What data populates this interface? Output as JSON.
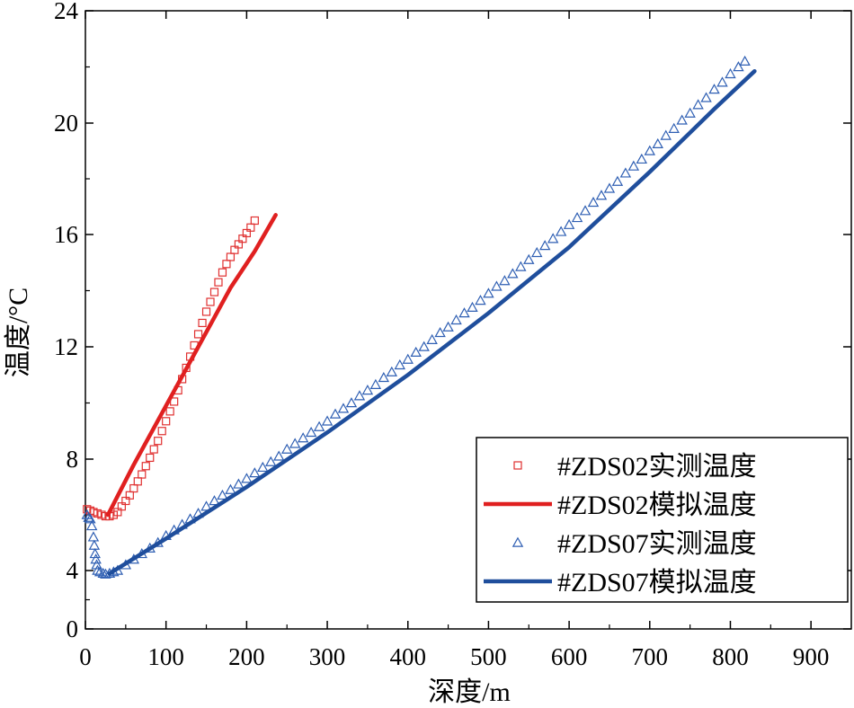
{
  "chart_data": {
    "type": "scatter",
    "title": "",
    "xlabel": "深度/m",
    "ylabel": "温度/°C",
    "xlim": [
      0,
      950
    ],
    "ylim": [
      0,
      24
    ],
    "x_ticks": [
      0,
      100,
      200,
      300,
      400,
      500,
      600,
      700,
      800,
      900
    ],
    "y_ticks": [
      0,
      4,
      8,
      12,
      16,
      20,
      24
    ],
    "grid": false,
    "legend_position": "bottom-right",
    "series": [
      {
        "name": "#ZDS02实测温度",
        "kind": "scatter",
        "marker": "square",
        "color": "#e03030",
        "points": [
          [
            2,
            6.2
          ],
          [
            6,
            6.15
          ],
          [
            10,
            6.1
          ],
          [
            15,
            6.05
          ],
          [
            20,
            6.0
          ],
          [
            25,
            5.95
          ],
          [
            30,
            5.95
          ],
          [
            35,
            6.0
          ],
          [
            40,
            6.1
          ],
          [
            45,
            6.3
          ],
          [
            50,
            6.5
          ],
          [
            55,
            6.7
          ],
          [
            60,
            6.95
          ],
          [
            65,
            7.2
          ],
          [
            70,
            7.45
          ],
          [
            75,
            7.75
          ],
          [
            80,
            8.05
          ],
          [
            85,
            8.35
          ],
          [
            90,
            8.65
          ],
          [
            95,
            9.0
          ],
          [
            100,
            9.35
          ],
          [
            105,
            9.7
          ],
          [
            110,
            10.05
          ],
          [
            115,
            10.45
          ],
          [
            120,
            10.85
          ],
          [
            125,
            11.25
          ],
          [
            130,
            11.65
          ],
          [
            135,
            12.05
          ],
          [
            140,
            12.45
          ],
          [
            145,
            12.85
          ],
          [
            150,
            13.25
          ],
          [
            155,
            13.6
          ],
          [
            160,
            13.95
          ],
          [
            165,
            14.3
          ],
          [
            170,
            14.65
          ],
          [
            175,
            14.95
          ],
          [
            180,
            15.2
          ],
          [
            185,
            15.45
          ],
          [
            190,
            15.65
          ],
          [
            195,
            15.85
          ],
          [
            200,
            16.05
          ],
          [
            205,
            16.25
          ],
          [
            210,
            16.5
          ]
        ]
      },
      {
        "name": "#ZDS02模拟温度",
        "kind": "line",
        "color": "#e02020",
        "points": [
          [
            28,
            6.0
          ],
          [
            60,
            7.8
          ],
          [
            100,
            9.9
          ],
          [
            140,
            12.0
          ],
          [
            180,
            14.1
          ],
          [
            210,
            15.4
          ],
          [
            236,
            16.7
          ]
        ]
      },
      {
        "name": "#ZDS07实测温度",
        "kind": "scatter",
        "marker": "triangle",
        "color": "#2f5fb3",
        "points": [
          [
            2,
            6.0
          ],
          [
            4,
            5.9
          ],
          [
            6,
            5.85
          ],
          [
            8,
            5.6
          ],
          [
            10,
            5.2
          ],
          [
            11,
            4.9
          ],
          [
            12,
            4.6
          ],
          [
            13,
            4.4
          ],
          [
            14,
            4.2
          ],
          [
            15,
            4.0
          ],
          [
            18,
            3.9
          ],
          [
            22,
            3.8
          ],
          [
            25,
            3.75
          ],
          [
            30,
            3.8
          ],
          [
            35,
            3.9
          ],
          [
            40,
            4.0
          ],
          [
            50,
            4.2
          ],
          [
            60,
            4.4
          ],
          [
            70,
            4.6
          ],
          [
            80,
            4.8
          ],
          [
            90,
            5.0
          ],
          [
            100,
            5.25
          ],
          [
            110,
            5.45
          ],
          [
            120,
            5.65
          ],
          [
            130,
            5.85
          ],
          [
            140,
            6.05
          ],
          [
            150,
            6.3
          ],
          [
            160,
            6.5
          ],
          [
            170,
            6.7
          ],
          [
            180,
            6.9
          ],
          [
            190,
            7.1
          ],
          [
            200,
            7.3
          ],
          [
            210,
            7.5
          ],
          [
            220,
            7.7
          ],
          [
            230,
            7.9
          ],
          [
            240,
            8.1
          ],
          [
            250,
            8.35
          ],
          [
            260,
            8.55
          ],
          [
            270,
            8.75
          ],
          [
            280,
            8.95
          ],
          [
            290,
            9.15
          ],
          [
            300,
            9.35
          ],
          [
            310,
            9.6
          ],
          [
            320,
            9.8
          ],
          [
            330,
            10.0
          ],
          [
            340,
            10.25
          ],
          [
            350,
            10.45
          ],
          [
            360,
            10.65
          ],
          [
            370,
            10.9
          ],
          [
            380,
            11.1
          ],
          [
            390,
            11.35
          ],
          [
            400,
            11.55
          ],
          [
            410,
            11.8
          ],
          [
            420,
            12.0
          ],
          [
            430,
            12.25
          ],
          [
            440,
            12.5
          ],
          [
            450,
            12.7
          ],
          [
            460,
            12.95
          ],
          [
            470,
            13.2
          ],
          [
            480,
            13.4
          ],
          [
            490,
            13.65
          ],
          [
            500,
            13.9
          ],
          [
            510,
            14.15
          ],
          [
            520,
            14.35
          ],
          [
            530,
            14.6
          ],
          [
            540,
            14.85
          ],
          [
            550,
            15.1
          ],
          [
            560,
            15.35
          ],
          [
            570,
            15.6
          ],
          [
            580,
            15.85
          ],
          [
            590,
            16.1
          ],
          [
            600,
            16.35
          ],
          [
            610,
            16.6
          ],
          [
            620,
            16.85
          ],
          [
            630,
            17.15
          ],
          [
            640,
            17.4
          ],
          [
            650,
            17.65
          ],
          [
            660,
            17.9
          ],
          [
            670,
            18.2
          ],
          [
            680,
            18.45
          ],
          [
            690,
            18.7
          ],
          [
            700,
            19.0
          ],
          [
            710,
            19.25
          ],
          [
            720,
            19.55
          ],
          [
            730,
            19.8
          ],
          [
            740,
            20.1
          ],
          [
            750,
            20.35
          ],
          [
            760,
            20.65
          ],
          [
            770,
            20.9
          ],
          [
            780,
            21.2
          ],
          [
            790,
            21.45
          ],
          [
            800,
            21.75
          ],
          [
            810,
            22.0
          ],
          [
            818,
            22.2
          ]
        ]
      },
      {
        "name": "#ZDS07模拟温度",
        "kind": "line",
        "color": "#1f4e9c",
        "points": [
          [
            30,
            3.8
          ],
          [
            100,
            5.15
          ],
          [
            200,
            7.0
          ],
          [
            300,
            8.95
          ],
          [
            400,
            11.0
          ],
          [
            500,
            13.2
          ],
          [
            600,
            15.55
          ],
          [
            700,
            18.25
          ],
          [
            780,
            20.5
          ],
          [
            830,
            21.85
          ]
        ]
      }
    ]
  }
}
